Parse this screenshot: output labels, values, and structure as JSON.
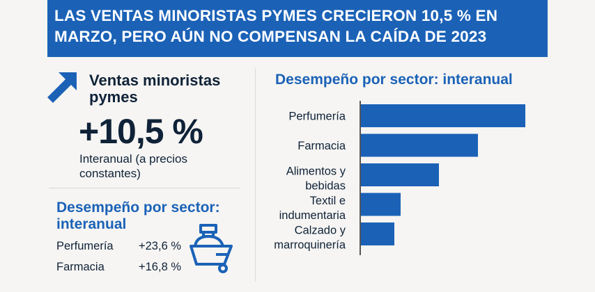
{
  "header": {
    "title": "LAS VENTAS MINORISTAS PYMES CRECIERON 10,5 % EN MARZO, PERO AÚN NO COMPENSAN LA CAÍDA DE 2023"
  },
  "kpi": {
    "title": "Ventas minoristas pymes",
    "value": "+10,5 %",
    "subtitle": "Interanual (a precios constantes)",
    "icon": "arrow-up-right-icon"
  },
  "sector_summary": {
    "title": "Desempeño por sector: interanual",
    "rows": [
      {
        "label": "Perfumería",
        "value": "+23,6 %"
      },
      {
        "label": "Farmacia",
        "value": "+16,8 %"
      }
    ],
    "icon": "perfume-bottle-icon"
  },
  "colors": {
    "accent": "#1b62b7",
    "text": "#0f2238"
  },
  "chart_data": {
    "type": "bar",
    "orientation": "horizontal",
    "title": "Desempeño por sector: interanual",
    "categories": [
      [
        "Perfumería"
      ],
      [
        "Farmacia"
      ],
      [
        "Alimentos y",
        "bebidas"
      ],
      [
        "Textil e",
        "indumentaria"
      ],
      [
        "Calzado y",
        "marroquinería"
      ]
    ],
    "values": [
      23.6,
      16.8,
      11.2,
      5.7,
      4.8
    ],
    "xlim": [
      0,
      23.6
    ],
    "xlabel": "",
    "ylabel": "",
    "grid": false
  }
}
